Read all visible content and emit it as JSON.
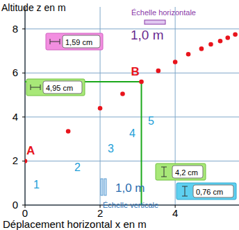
{
  "chart_data": {
    "type": "scatter",
    "x_label": "Déplacement horizontal x en m",
    "y_label": "Altitude z en m",
    "x": [
      0,
      1.15,
      2.0,
      2.6,
      3.1,
      3.55,
      4.0,
      4.35,
      4.7,
      4.95,
      5.2,
      5.4,
      5.6
    ],
    "values": [
      2.0,
      3.35,
      4.4,
      5.05,
      5.6,
      6.1,
      6.5,
      6.85,
      7.1,
      7.3,
      7.45,
      7.6,
      7.75
    ],
    "color": "#e8141c",
    "marker": "circle",
    "xlim": [
      0,
      5.7
    ],
    "ylim": [
      0,
      9
    ],
    "xticks": [
      0,
      2,
      4
    ],
    "yticks": [
      0,
      2,
      4,
      6,
      8
    ],
    "grid": true,
    "annotations": [
      {
        "text": "A"
      },
      {
        "text": "B"
      },
      {
        "text": "1"
      },
      {
        "text": "2"
      },
      {
        "text": "3"
      },
      {
        "text": "4"
      },
      {
        "text": "5"
      },
      {
        "text": "1,59 cm"
      },
      {
        "text": "4,95 cm"
      },
      {
        "text": "4,2 cm"
      },
      {
        "text": "0,76 cm"
      },
      {
        "text": "Échelle horizontale"
      },
      {
        "text": "1,0 m"
      },
      {
        "text": "Échelle verticale"
      },
      {
        "text": "1,0 m"
      }
    ]
  }
}
